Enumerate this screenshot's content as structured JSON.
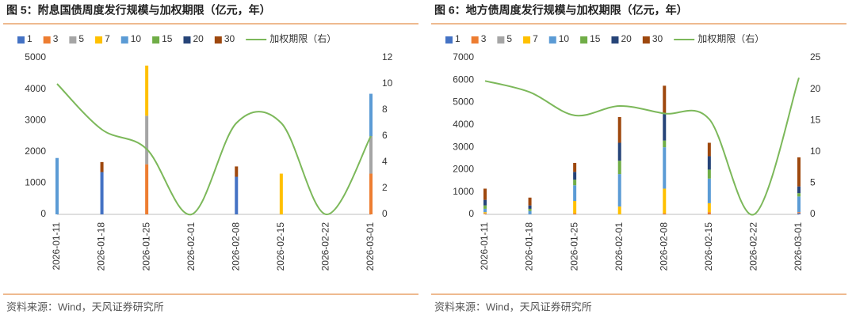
{
  "chart_data": [
    {
      "type": "bar",
      "stacked": true,
      "title": "图 5：附息国债周度发行规模与加权期限（亿元，年）",
      "source": "资料来源：Wind，天风证券研究所",
      "categories": [
        "2026-01-11",
        "2026-01-18",
        "2026-01-25",
        "2026-02-01",
        "2026-02-08",
        "2026-02-15",
        "2026-02-22",
        "2026-03-01"
      ],
      "series": [
        {
          "name": "1",
          "color": "#4472c4",
          "values": [
            0,
            1350,
            0,
            0,
            1200,
            0,
            0,
            0
          ]
        },
        {
          "name": "3",
          "color": "#ed7d31",
          "values": [
            0,
            0,
            1600,
            0,
            0,
            0,
            0,
            1300
          ]
        },
        {
          "name": "5",
          "color": "#a5a5a5",
          "values": [
            0,
            0,
            1550,
            0,
            0,
            0,
            0,
            1200
          ]
        },
        {
          "name": "7",
          "color": "#ffc000",
          "values": [
            0,
            0,
            1600,
            0,
            0,
            1300,
            0,
            0
          ]
        },
        {
          "name": "10",
          "color": "#5b9bd5",
          "values": [
            1800,
            0,
            0,
            0,
            0,
            0,
            0,
            1350
          ]
        },
        {
          "name": "15",
          "color": "#70ad47",
          "values": [
            0,
            0,
            0,
            0,
            0,
            0,
            0,
            0
          ]
        },
        {
          "name": "20",
          "color": "#264478",
          "values": [
            0,
            0,
            0,
            0,
            0,
            0,
            0,
            0
          ]
        },
        {
          "name": "30",
          "color": "#9e480e",
          "values": [
            0,
            320,
            0,
            0,
            330,
            0,
            0,
            0
          ]
        },
        {
          "name": "加权期限（右）",
          "color": "#7cb85a",
          "type": "line",
          "axis": "y2",
          "values": [
            10.0,
            6.5,
            5.0,
            0,
            7.0,
            7.0,
            0,
            6.0
          ]
        }
      ],
      "ylim": [
        0,
        5000
      ],
      "yticks": [
        0,
        1000,
        2000,
        3000,
        4000,
        5000
      ],
      "y2lim": [
        0,
        12
      ],
      "y2ticks": [
        0,
        2,
        4,
        6,
        8,
        10,
        12
      ]
    },
    {
      "type": "bar",
      "stacked": true,
      "title": "图 6：地方债周度发行规模与加权期限（亿元，年）",
      "source": "资料来源：Wind，天风证券研究所",
      "categories": [
        "2026-01-11",
        "2026-01-18",
        "2026-01-25",
        "2026-02-01",
        "2026-02-08",
        "2026-02-15",
        "2026-02-22",
        "2026-03-01"
      ],
      "series": [
        {
          "name": "1",
          "color": "#4472c4",
          "values": [
            0,
            0,
            0,
            0,
            0,
            0,
            0,
            50
          ]
        },
        {
          "name": "3",
          "color": "#ed7d31",
          "values": [
            30,
            0,
            50,
            0,
            50,
            100,
            0,
            50
          ]
        },
        {
          "name": "5",
          "color": "#a5a5a5",
          "values": [
            20,
            0,
            0,
            0,
            0,
            0,
            0,
            0
          ]
        },
        {
          "name": "7",
          "color": "#ffc000",
          "values": [
            50,
            0,
            550,
            350,
            1100,
            400,
            0,
            0
          ]
        },
        {
          "name": "10",
          "color": "#5b9bd5",
          "values": [
            150,
            150,
            700,
            1450,
            1850,
            1100,
            0,
            700
          ]
        },
        {
          "name": "15",
          "color": "#70ad47",
          "values": [
            150,
            100,
            250,
            600,
            300,
            400,
            0,
            150
          ]
        },
        {
          "name": "20",
          "color": "#264478",
          "values": [
            250,
            150,
            350,
            800,
            1200,
            600,
            0,
            300
          ]
        },
        {
          "name": "30",
          "color": "#9e480e",
          "values": [
            500,
            350,
            400,
            1150,
            1250,
            600,
            0,
            1300
          ]
        },
        {
          "name": "加权期限（右）",
          "color": "#7cb85a",
          "type": "line",
          "axis": "y2",
          "values": [
            21.3,
            19.5,
            15.8,
            17.3,
            16.1,
            15.2,
            0,
            21.8
          ]
        }
      ],
      "ylim": [
        0,
        7000
      ],
      "yticks": [
        0,
        1000,
        2000,
        3000,
        4000,
        5000,
        6000,
        7000
      ],
      "y2lim": [
        0,
        25
      ],
      "y2ticks": [
        0,
        5,
        10,
        15,
        20,
        25
      ]
    }
  ]
}
